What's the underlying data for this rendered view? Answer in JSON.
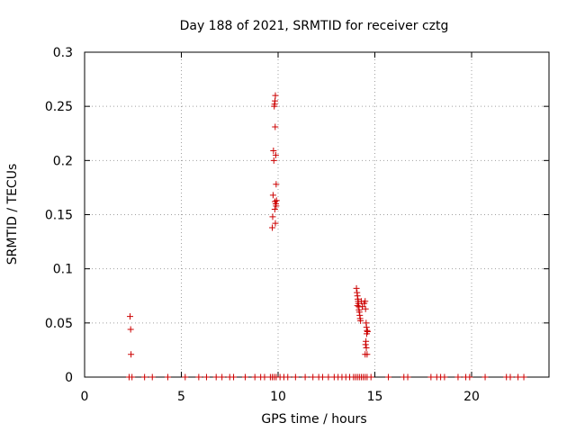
{
  "chart_data": {
    "type": "scatter",
    "title": "Day 188 of 2021, SRMTID for receiver cztg",
    "xlabel": "GPS time / hours",
    "ylabel": "SRMTID / TECUs",
    "xlim": [
      0,
      24
    ],
    "ylim": [
      0,
      0.3
    ],
    "xticks": [
      0,
      5,
      10,
      15,
      20
    ],
    "xtick_labels": [
      "0",
      "5",
      "10",
      "15",
      "20"
    ],
    "yticks": [
      0,
      0.05,
      0.1,
      0.15,
      0.2,
      0.25,
      0.3
    ],
    "ytick_labels": [
      "0",
      "0.05",
      "0.1",
      "0.15",
      "0.2",
      "0.25",
      "0.3"
    ],
    "grid": true,
    "marker": "+",
    "color": "#cc0000",
    "series": [
      {
        "name": "SRMTID",
        "points": [
          [
            2.35,
            0.056
          ],
          [
            2.38,
            0.044
          ],
          [
            2.4,
            0.021
          ],
          [
            9.7,
            0.138
          ],
          [
            9.72,
            0.148
          ],
          [
            9.74,
            0.168
          ],
          [
            9.76,
            0.209
          ],
          [
            9.78,
            0.2
          ],
          [
            9.8,
            0.25
          ],
          [
            9.82,
            0.252
          ],
          [
            9.84,
            0.255
          ],
          [
            9.86,
            0.26
          ],
          [
            9.85,
            0.231
          ],
          [
            9.88,
            0.205
          ],
          [
            9.9,
            0.178
          ],
          [
            9.92,
            0.163
          ],
          [
            9.9,
            0.158
          ],
          [
            9.88,
            0.16
          ],
          [
            9.86,
            0.142
          ],
          [
            9.84,
            0.162
          ],
          [
            9.83,
            0.155
          ],
          [
            14.05,
            0.082
          ],
          [
            14.08,
            0.078
          ],
          [
            14.1,
            0.075
          ],
          [
            14.12,
            0.072
          ],
          [
            14.14,
            0.07
          ],
          [
            14.15,
            0.068
          ],
          [
            14.17,
            0.065
          ],
          [
            14.18,
            0.062
          ],
          [
            14.2,
            0.06
          ],
          [
            14.22,
            0.057
          ],
          [
            14.24,
            0.054
          ],
          [
            14.26,
            0.052
          ],
          [
            14.1,
            0.066
          ],
          [
            14.3,
            0.07
          ],
          [
            14.35,
            0.065
          ],
          [
            14.45,
            0.068
          ],
          [
            14.5,
            0.07
          ],
          [
            14.52,
            0.063
          ],
          [
            14.55,
            0.05
          ],
          [
            14.57,
            0.046
          ],
          [
            14.6,
            0.043
          ],
          [
            14.62,
            0.042
          ],
          [
            14.58,
            0.04
          ],
          [
            14.54,
            0.033
          ],
          [
            14.52,
            0.03
          ],
          [
            14.56,
            0.027
          ],
          [
            14.5,
            0.021
          ],
          [
            14.6,
            0.021
          ],
          [
            2.3,
            0
          ],
          [
            2.45,
            0
          ],
          [
            3.1,
            0
          ],
          [
            3.5,
            0
          ],
          [
            4.3,
            0
          ],
          [
            5.2,
            0
          ],
          [
            5.9,
            0
          ],
          [
            6.3,
            0
          ],
          [
            6.8,
            0
          ],
          [
            7.1,
            0
          ],
          [
            7.5,
            0
          ],
          [
            7.7,
            0
          ],
          [
            8.3,
            0
          ],
          [
            8.8,
            0
          ],
          [
            9.1,
            0
          ],
          [
            9.3,
            0
          ],
          [
            9.6,
            0
          ],
          [
            9.7,
            0
          ],
          [
            9.8,
            0
          ],
          [
            9.9,
            0
          ],
          [
            10.1,
            0
          ],
          [
            10.3,
            0
          ],
          [
            10.5,
            0
          ],
          [
            10.9,
            0
          ],
          [
            11.4,
            0
          ],
          [
            11.8,
            0
          ],
          [
            12.1,
            0
          ],
          [
            12.3,
            0
          ],
          [
            12.6,
            0
          ],
          [
            12.9,
            0
          ],
          [
            13.1,
            0
          ],
          [
            13.3,
            0
          ],
          [
            13.5,
            0
          ],
          [
            13.7,
            0
          ],
          [
            13.9,
            0
          ],
          [
            14.0,
            0
          ],
          [
            14.1,
            0
          ],
          [
            14.2,
            0
          ],
          [
            14.3,
            0
          ],
          [
            14.4,
            0
          ],
          [
            14.5,
            0
          ],
          [
            14.6,
            0
          ],
          [
            14.8,
            0
          ],
          [
            15.7,
            0
          ],
          [
            16.5,
            0
          ],
          [
            16.7,
            0
          ],
          [
            17.9,
            0
          ],
          [
            18.2,
            0
          ],
          [
            18.4,
            0
          ],
          [
            18.6,
            0
          ],
          [
            19.3,
            0
          ],
          [
            19.7,
            0
          ],
          [
            19.9,
            0
          ],
          [
            20.7,
            0
          ],
          [
            21.8,
            0
          ],
          [
            22.0,
            0
          ],
          [
            22.4,
            0
          ],
          [
            22.7,
            0
          ]
        ]
      }
    ]
  }
}
